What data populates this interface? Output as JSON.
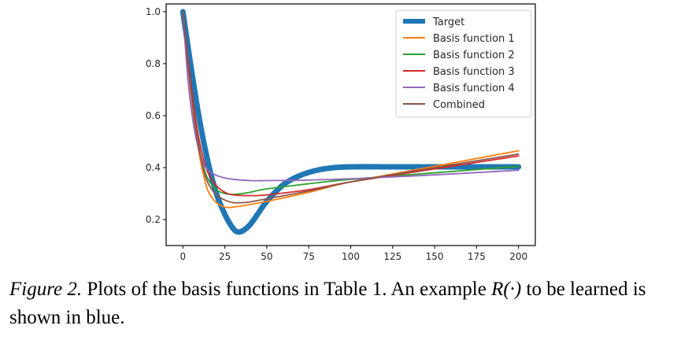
{
  "chart_data": {
    "type": "line",
    "xlim": [
      -10,
      210
    ],
    "ylim": [
      0.1,
      1.03
    ],
    "x_ticks": [
      0,
      25,
      50,
      75,
      100,
      125,
      150,
      175,
      200
    ],
    "y_ticks": [
      0.2,
      0.4,
      0.6,
      0.8,
      1.0
    ],
    "x_tick_labels": [
      "0",
      "25",
      "50",
      "75",
      "100",
      "125",
      "150",
      "175",
      "200"
    ],
    "y_tick_labels": [
      "0.2",
      "0.4",
      "0.6",
      "0.8",
      "1.0"
    ],
    "grid": false,
    "legend_position": "top-right",
    "series": [
      {
        "name": "Target",
        "color": "#1f77b4",
        "width": 7,
        "x": [
          0,
          5,
          10,
          15,
          20,
          25,
          30,
          33,
          36,
          40,
          45,
          50,
          60,
          70,
          80,
          90,
          100,
          120,
          150,
          200
        ],
        "y": [
          1.0,
          0.78,
          0.58,
          0.42,
          0.3,
          0.22,
          0.165,
          0.152,
          0.158,
          0.18,
          0.225,
          0.27,
          0.335,
          0.37,
          0.39,
          0.4,
          0.403,
          0.403,
          0.403,
          0.403
        ]
      },
      {
        "name": "Basis function 1",
        "color": "#ff7f0e",
        "width": 1.8,
        "x": [
          0,
          3,
          6,
          9,
          12,
          15,
          20,
          25,
          30,
          40,
          50,
          75,
          100,
          150,
          200
        ],
        "y": [
          1.0,
          0.8,
          0.62,
          0.48,
          0.38,
          0.31,
          0.265,
          0.248,
          0.248,
          0.258,
          0.27,
          0.305,
          0.345,
          0.405,
          0.465
        ]
      },
      {
        "name": "Basis function 2",
        "color": "#2ca02c",
        "width": 1.8,
        "x": [
          0,
          3,
          6,
          9,
          12,
          15,
          20,
          25,
          30,
          35,
          40,
          50,
          75,
          100,
          150,
          200
        ],
        "y": [
          1.0,
          0.8,
          0.63,
          0.5,
          0.41,
          0.355,
          0.315,
          0.3,
          0.297,
          0.3,
          0.305,
          0.318,
          0.338,
          0.355,
          0.38,
          0.405
        ]
      },
      {
        "name": "Basis function 3",
        "color": "#d62728",
        "width": 1.8,
        "x": [
          0,
          3,
          6,
          9,
          12,
          15,
          20,
          25,
          30,
          40,
          50,
          75,
          100,
          150,
          200
        ],
        "y": [
          1.0,
          0.82,
          0.66,
          0.53,
          0.44,
          0.38,
          0.33,
          0.305,
          0.295,
          0.292,
          0.295,
          0.315,
          0.345,
          0.395,
          0.445
        ]
      },
      {
        "name": "Basis function 4",
        "color": "#9467bd",
        "width": 1.8,
        "x": [
          0,
          3,
          6,
          9,
          12,
          15,
          20,
          25,
          30,
          40,
          50,
          75,
          100,
          150,
          200
        ],
        "y": [
          1.0,
          0.74,
          0.58,
          0.48,
          0.42,
          0.39,
          0.37,
          0.36,
          0.355,
          0.35,
          0.35,
          0.352,
          0.357,
          0.372,
          0.39
        ]
      },
      {
        "name": "Combined",
        "color": "#8c564b",
        "width": 1.8,
        "x": [
          0,
          3,
          6,
          9,
          12,
          15,
          20,
          25,
          30,
          35,
          40,
          50,
          75,
          100,
          150,
          200
        ],
        "y": [
          1.0,
          0.8,
          0.63,
          0.5,
          0.4,
          0.34,
          0.295,
          0.275,
          0.265,
          0.265,
          0.268,
          0.28,
          0.31,
          0.345,
          0.4,
          0.452
        ]
      }
    ]
  },
  "caption": {
    "label": "Figure 2.",
    "text_before": " Plots of the basis functions in Table 1. An example ",
    "math": "R(·)",
    "text_after": " to be learned is shown in blue."
  }
}
